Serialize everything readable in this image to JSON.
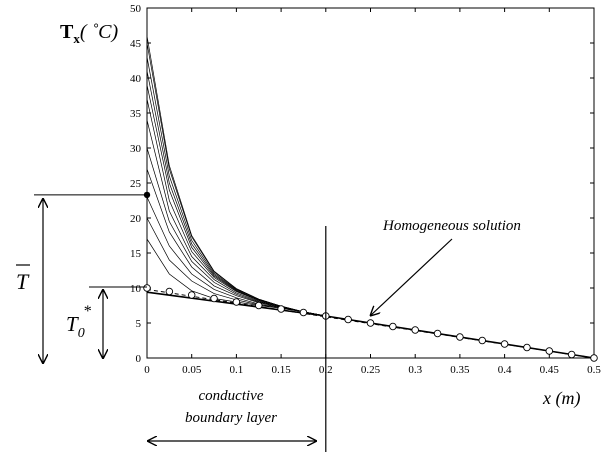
{
  "chart_data": {
    "type": "line",
    "x_ticks": [
      "0",
      "0.05",
      "0.1",
      "0.15",
      "0.2",
      "0.25",
      "0.3",
      "0.35",
      "0.4",
      "0.45",
      "0.5"
    ],
    "y_ticks": [
      "0",
      "5",
      "10",
      "15",
      "20",
      "25",
      "30",
      "35",
      "40",
      "45",
      "50"
    ],
    "xlim": [
      0,
      0.5
    ],
    "ylim": [
      0,
      50
    ],
    "ylabel_main": "T",
    "ylabel_sub": "x",
    "ylabel_units": "( ˚C)",
    "xlabel": "x (m)",
    "grid": false,
    "x": [
      0,
      0.025,
      0.05,
      0.075,
      0.1,
      0.125,
      0.15,
      0.175,
      0.2
    ],
    "transient_series": [
      {
        "values": [
          17,
          12,
          9.6,
          8.5,
          8.0,
          7.5,
          7.1,
          6.6,
          6.0
        ]
      },
      {
        "values": [
          20,
          14,
          11,
          9.2,
          8.3,
          7.6,
          7.1,
          6.6,
          6.0
        ]
      },
      {
        "values": [
          23,
          16,
          12,
          9.8,
          8.6,
          7.7,
          7.2,
          6.6,
          6.0
        ]
      },
      {
        "values": [
          27,
          18,
          13,
          10.3,
          8.9,
          7.9,
          7.2,
          6.6,
          6.0
        ]
      },
      {
        "values": [
          30,
          19.5,
          13.8,
          10.8,
          9.1,
          8.0,
          7.3,
          6.6,
          6.0
        ]
      },
      {
        "values": [
          34,
          21,
          14.5,
          11.2,
          9.3,
          8.1,
          7.3,
          6.6,
          6.0
        ]
      },
      {
        "values": [
          37,
          22.5,
          15.2,
          11.5,
          9.5,
          8.2,
          7.3,
          6.6,
          6.0
        ]
      },
      {
        "values": [
          39,
          24,
          15.8,
          11.7,
          9.6,
          8.3,
          7.4,
          6.6,
          6.0
        ]
      },
      {
        "values": [
          41,
          25,
          16.3,
          11.9,
          9.7,
          8.3,
          7.4,
          6.6,
          6.0
        ]
      },
      {
        "values": [
          43,
          26,
          16.8,
          12.1,
          9.8,
          8.4,
          7.4,
          6.6,
          6.0
        ]
      },
      {
        "values": [
          45,
          27,
          17.3,
          12.3,
          9.9,
          8.4,
          7.4,
          6.6,
          6.0
        ]
      },
      {
        "values": [
          46,
          27.5,
          17.5,
          12.4,
          9.9,
          8.4,
          7.4,
          6.6,
          6.0
        ]
      }
    ],
    "homogeneous_solution": {
      "x": [
        0,
        0.025,
        0.05,
        0.075,
        0.1,
        0.125,
        0.15,
        0.175,
        0.2,
        0.225,
        0.25,
        0.275,
        0.3,
        0.325,
        0.35,
        0.375,
        0.4,
        0.425,
        0.45,
        0.475,
        0.5
      ],
      "values": [
        10,
        9.5,
        9.0,
        8.5,
        8.0,
        7.5,
        7.0,
        6.5,
        6.0,
        5.5,
        5.0,
        4.5,
        4.0,
        3.5,
        3.0,
        2.5,
        2.0,
        1.5,
        1.0,
        0.5,
        0
      ]
    },
    "solid_line": {
      "x": [
        0,
        0.2,
        0.5
      ],
      "values": [
        9.4,
        6.0,
        0
      ]
    },
    "dashed_line": {
      "x": [
        0,
        0.5
      ],
      "values": [
        9.8,
        0
      ]
    },
    "mean_temperature_point": {
      "x": 0,
      "value": 23.3
    },
    "annotations": {
      "homogeneous": "Homogeneous solution",
      "boundary_line1": "conductive",
      "boundary_line2": "boundary layer",
      "t_bar": "T",
      "t0_main": "T",
      "t0_sub": "0",
      "t0_sup": "*"
    },
    "boundary_x": 0.2
  }
}
